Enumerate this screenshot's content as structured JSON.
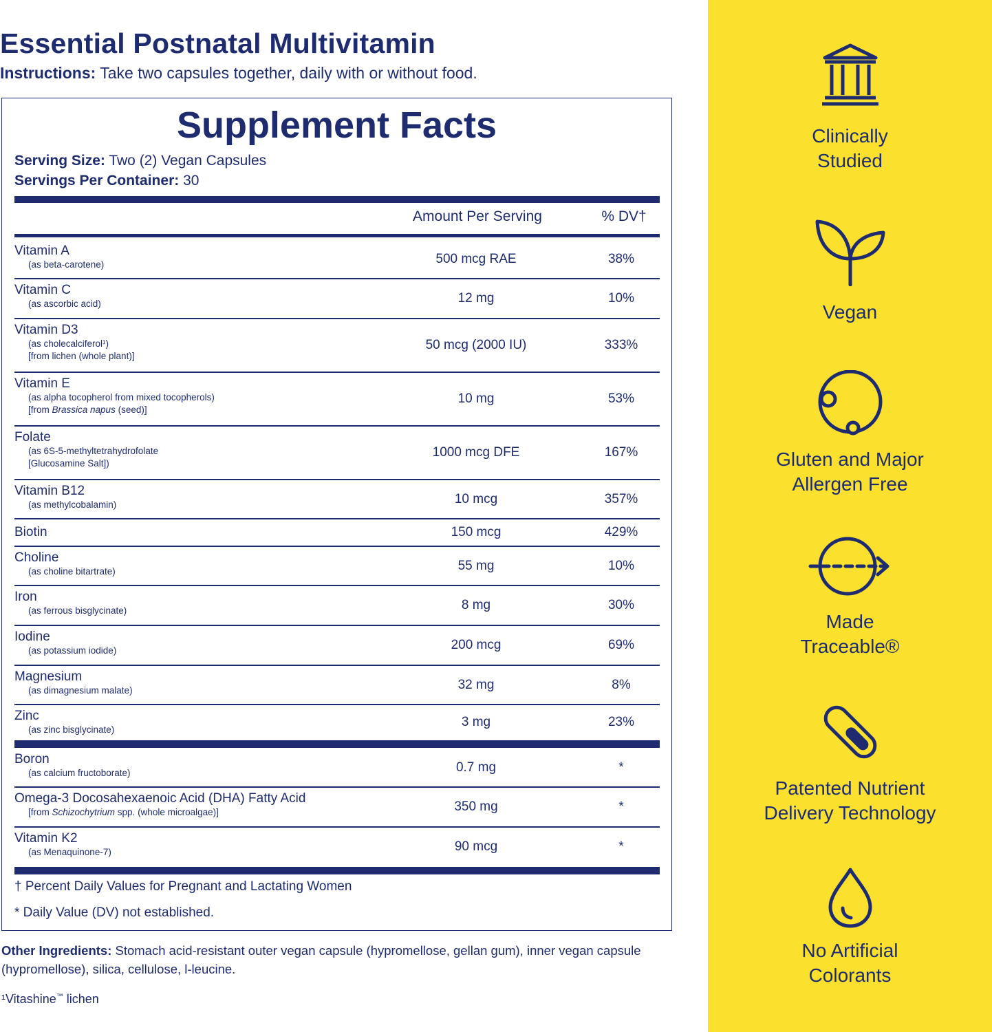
{
  "product": {
    "title": "Essential Postnatal Multivitamin",
    "instructions_label": "Instructions:",
    "instructions_text": " Take two capsules together, daily with or without food."
  },
  "facts": {
    "title": "Supplement Facts",
    "serving_size_label": "Serving Size:",
    "serving_size_value": " Two (2) Vegan Capsules",
    "servings_per_container_label": "Servings Per Container:",
    "servings_per_container_value": " 30",
    "col_amount": "Amount Per Serving",
    "col_dv": "% DV†",
    "rows": [
      {
        "name": "Vitamin A",
        "sub1": "(as beta-carotene)",
        "sub2": "",
        "amount": "500 mcg RAE",
        "dv": "38%"
      },
      {
        "name": "Vitamin C",
        "sub1": "(as ascorbic acid)",
        "sub2": "",
        "amount": "12 mg",
        "dv": "10%"
      },
      {
        "name": "Vitamin D3",
        "sub1": "(as cholecalciferol¹)",
        "sub2": "[from lichen (whole plant)]",
        "amount": "50 mcg (2000 IU)",
        "dv": "333%"
      },
      {
        "name": "Vitamin E",
        "sub1": "(as alpha tocopherol from mixed tocopherols)",
        "sub2": "[from Brassica napus (seed)]",
        "amount": "10 mg",
        "dv": "53%"
      },
      {
        "name": "Folate",
        "sub1": "(as 6S-5-methyltetrahydrofolate",
        "sub2": "[Glucosamine Salt])",
        "amount": "1000 mcg DFE",
        "dv": "167%"
      },
      {
        "name": "Vitamin B12",
        "sub1": "(as methylcobalamin)",
        "sub2": "",
        "amount": "10 mcg",
        "dv": "357%"
      },
      {
        "name": "Biotin",
        "sub1": "",
        "sub2": "",
        "amount": "150 mcg",
        "dv": "429%"
      },
      {
        "name": "Choline",
        "sub1": "(as choline bitartrate)",
        "sub2": "",
        "amount": "55 mg",
        "dv": "10%"
      },
      {
        "name": "Iron",
        "sub1": "(as ferrous bisglycinate)",
        "sub2": "",
        "amount": "8 mg",
        "dv": "30%"
      },
      {
        "name": "Iodine",
        "sub1": "(as potassium iodide)",
        "sub2": "",
        "amount": "200 mcg",
        "dv": "69%"
      },
      {
        "name": "Magnesium",
        "sub1": "(as dimagnesium malate)",
        "sub2": "",
        "amount": "32 mg",
        "dv": "8%"
      },
      {
        "name": "Zinc",
        "sub1": "(as zinc bisglycinate)",
        "sub2": "",
        "amount": "3 mg",
        "dv": "23%"
      },
      {
        "name": "Boron",
        "sub1": "(as calcium fructoborate)",
        "sub2": "",
        "amount": "0.7 mg",
        "dv": "*"
      },
      {
        "name": "Omega-3 Docosahexaenoic Acid (DHA) Fatty Acid",
        "sub1": "[from Schizochytrium spp. (whole microalgae)]",
        "sub2": "",
        "amount": "350 mg",
        "dv": "*"
      },
      {
        "name": "Vitamin K2",
        "sub1": "(as Menaquinone-7)",
        "sub2": "",
        "amount": "90 mcg",
        "dv": "*"
      }
    ],
    "footnote_dagger": "† Percent Daily Values for Pregnant and Lactating Women",
    "footnote_star": "* Daily Value (DV) not established."
  },
  "other_ingredients": {
    "label": "Other Ingredients:",
    "text": " Stomach acid-resistant outer vegan capsule (hypromellose, gellan gum), inner vegan capsule (hypromellose), silica, cellulose, l-leucine."
  },
  "lichen_note": {
    "prefix": "¹Vitashine",
    "tm": "™",
    "suffix": " lichen"
  },
  "features": [
    {
      "icon": "building-columns-icon",
      "line1": "Clinically",
      "line2": "Studied"
    },
    {
      "icon": "sprout-icon",
      "line1": "Vegan",
      "line2": ""
    },
    {
      "icon": "circle-node-icon",
      "line1": "Gluten and Major",
      "line2": "Allergen Free"
    },
    {
      "icon": "circle-arrow-icon",
      "line1": "Made",
      "line2": "Traceable®"
    },
    {
      "icon": "capsule-icon",
      "line1": "Patented Nutrient",
      "line2": "Delivery Technology"
    },
    {
      "icon": "droplet-icon",
      "line1": "No Artificial",
      "line2": "Colorants"
    }
  ],
  "colors": {
    "navy": "#1e2c6f",
    "yellow": "#fbe12d"
  }
}
